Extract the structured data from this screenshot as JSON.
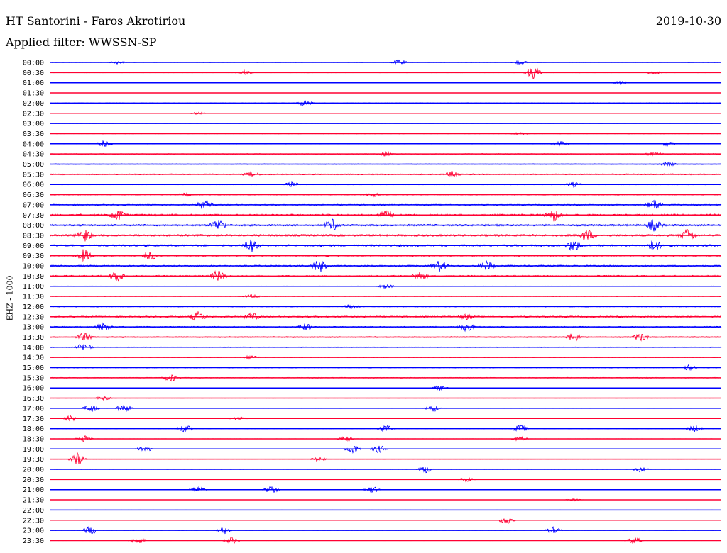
{
  "header": {
    "station": "HT Santorini - Faros Akrotiriou",
    "date": "2019-10-30",
    "filter": "Applied filter: WWSSN-SP",
    "channel": "EHZ - 1000"
  },
  "colors": {
    "even_rows": "#0000ff",
    "odd_rows": "#ff0033",
    "background": "#ffffff"
  },
  "chart_data": {
    "type": "line",
    "title": "HT Santorini - Faros Akrotiriou",
    "ylabel": "EHZ - 1000",
    "rows": [
      {
        "label": "00:00",
        "activity": 0.15,
        "bursts": [
          [
            0.52,
            4
          ],
          [
            0.7,
            3
          ],
          [
            0.1,
            2
          ]
        ]
      },
      {
        "label": "00:30",
        "activity": 0.2,
        "bursts": [
          [
            0.72,
            9
          ],
          [
            0.29,
            3
          ],
          [
            0.9,
            2
          ]
        ]
      },
      {
        "label": "01:00",
        "activity": 0.05,
        "bursts": [
          [
            0.85,
            3
          ]
        ]
      },
      {
        "label": "01:30",
        "activity": 0.05,
        "bursts": []
      },
      {
        "label": "02:00",
        "activity": 0.3,
        "bursts": [
          [
            0.38,
            4
          ]
        ]
      },
      {
        "label": "02:30",
        "activity": 0.08,
        "bursts": [
          [
            0.22,
            2
          ]
        ]
      },
      {
        "label": "03:00",
        "activity": 0.05,
        "bursts": []
      },
      {
        "label": "03:30",
        "activity": 0.2,
        "bursts": [
          [
            0.7,
            2
          ]
        ]
      },
      {
        "label": "04:00",
        "activity": 0.2,
        "bursts": [
          [
            0.08,
            4
          ],
          [
            0.76,
            3
          ],
          [
            0.92,
            3
          ]
        ]
      },
      {
        "label": "04:30",
        "activity": 0.3,
        "bursts": [
          [
            0.5,
            3
          ],
          [
            0.9,
            4
          ]
        ]
      },
      {
        "label": "05:00",
        "activity": 0.3,
        "bursts": [
          [
            0.92,
            3
          ]
        ]
      },
      {
        "label": "05:30",
        "activity": 0.45,
        "bursts": [
          [
            0.6,
            4
          ],
          [
            0.3,
            3
          ]
        ]
      },
      {
        "label": "06:00",
        "activity": 0.3,
        "bursts": [
          [
            0.36,
            3
          ],
          [
            0.78,
            3
          ]
        ]
      },
      {
        "label": "06:30",
        "activity": 0.35,
        "bursts": [
          [
            0.48,
            3
          ],
          [
            0.2,
            3
          ]
        ]
      },
      {
        "label": "07:00",
        "activity": 0.45,
        "bursts": [
          [
            0.23,
            7
          ],
          [
            0.9,
            8
          ]
        ]
      },
      {
        "label": "07:30",
        "activity": 0.75,
        "bursts": [
          [
            0.1,
            8
          ],
          [
            0.75,
            9
          ],
          [
            0.5,
            6
          ]
        ]
      },
      {
        "label": "08:00",
        "activity": 0.7,
        "bursts": [
          [
            0.25,
            8
          ],
          [
            0.42,
            8
          ],
          [
            0.9,
            8
          ]
        ]
      },
      {
        "label": "08:30",
        "activity": 0.75,
        "bursts": [
          [
            0.05,
            9
          ],
          [
            0.8,
            8
          ],
          [
            0.95,
            9
          ]
        ]
      },
      {
        "label": "09:00",
        "activity": 0.7,
        "bursts": [
          [
            0.3,
            8
          ],
          [
            0.78,
            8
          ],
          [
            0.9,
            8
          ]
        ]
      },
      {
        "label": "09:30",
        "activity": 0.5,
        "bursts": [
          [
            0.05,
            9
          ],
          [
            0.15,
            6
          ]
        ]
      },
      {
        "label": "10:00",
        "activity": 0.6,
        "bursts": [
          [
            0.4,
            9
          ],
          [
            0.58,
            8
          ],
          [
            0.65,
            7
          ]
        ]
      },
      {
        "label": "10:30",
        "activity": 0.6,
        "bursts": [
          [
            0.1,
            8
          ],
          [
            0.25,
            8
          ],
          [
            0.55,
            6
          ]
        ]
      },
      {
        "label": "11:00",
        "activity": 0.2,
        "bursts": [
          [
            0.5,
            3
          ]
        ]
      },
      {
        "label": "11:30",
        "activity": 0.2,
        "bursts": [
          [
            0.3,
            3
          ]
        ]
      },
      {
        "label": "12:00",
        "activity": 0.35,
        "bursts": [
          [
            0.45,
            3
          ]
        ]
      },
      {
        "label": "12:30",
        "activity": 0.55,
        "bursts": [
          [
            0.22,
            7
          ],
          [
            0.3,
            6
          ],
          [
            0.62,
            4
          ]
        ]
      },
      {
        "label": "13:00",
        "activity": 0.45,
        "bursts": [
          [
            0.08,
            6
          ],
          [
            0.38,
            5
          ],
          [
            0.62,
            6
          ]
        ]
      },
      {
        "label": "13:30",
        "activity": 0.45,
        "bursts": [
          [
            0.05,
            6
          ],
          [
            0.78,
            6
          ],
          [
            0.88,
            5
          ]
        ]
      },
      {
        "label": "14:00",
        "activity": 0.3,
        "bursts": [
          [
            0.05,
            6
          ]
        ]
      },
      {
        "label": "14:30",
        "activity": 0.2,
        "bursts": [
          [
            0.3,
            3
          ]
        ]
      },
      {
        "label": "15:00",
        "activity": 0.3,
        "bursts": [
          [
            0.95,
            4
          ]
        ]
      },
      {
        "label": "15:30",
        "activity": 0.3,
        "bursts": [
          [
            0.18,
            5
          ]
        ]
      },
      {
        "label": "16:00",
        "activity": 0.12,
        "bursts": [
          [
            0.58,
            4
          ]
        ]
      },
      {
        "label": "16:30",
        "activity": 0.1,
        "bursts": [
          [
            0.08,
            3
          ]
        ]
      },
      {
        "label": "17:00",
        "activity": 0.12,
        "bursts": [
          [
            0.06,
            6
          ],
          [
            0.11,
            6
          ],
          [
            0.57,
            5
          ]
        ]
      },
      {
        "label": "17:30",
        "activity": 0.08,
        "bursts": [
          [
            0.03,
            4
          ],
          [
            0.28,
            3
          ]
        ]
      },
      {
        "label": "18:00",
        "activity": 0.12,
        "bursts": [
          [
            0.2,
            6
          ],
          [
            0.5,
            6
          ],
          [
            0.7,
            6
          ],
          [
            0.96,
            5
          ]
        ]
      },
      {
        "label": "18:30",
        "activity": 0.1,
        "bursts": [
          [
            0.05,
            5
          ],
          [
            0.44,
            4
          ],
          [
            0.7,
            4
          ]
        ]
      },
      {
        "label": "19:00",
        "activity": 0.1,
        "bursts": [
          [
            0.14,
            5
          ],
          [
            0.45,
            6
          ],
          [
            0.49,
            6
          ]
        ]
      },
      {
        "label": "19:30",
        "activity": 0.08,
        "bursts": [
          [
            0.04,
            9
          ],
          [
            0.4,
            4
          ]
        ]
      },
      {
        "label": "20:00",
        "activity": 0.12,
        "bursts": [
          [
            0.56,
            5
          ],
          [
            0.88,
            4
          ]
        ]
      },
      {
        "label": "20:30",
        "activity": 0.08,
        "bursts": [
          [
            0.62,
            4
          ]
        ]
      },
      {
        "label": "21:00",
        "activity": 0.1,
        "bursts": [
          [
            0.22,
            5
          ],
          [
            0.33,
            6
          ],
          [
            0.48,
            5
          ]
        ]
      },
      {
        "label": "21:30",
        "activity": 0.05,
        "bursts": [
          [
            0.78,
            2
          ]
        ]
      },
      {
        "label": "22:00",
        "activity": 0.03,
        "bursts": []
      },
      {
        "label": "22:30",
        "activity": 0.08,
        "bursts": [
          [
            0.68,
            6
          ]
        ]
      },
      {
        "label": "23:00",
        "activity": 0.1,
        "bursts": [
          [
            0.06,
            6
          ],
          [
            0.26,
            5
          ],
          [
            0.75,
            5
          ]
        ]
      },
      {
        "label": "23:30",
        "activity": 0.1,
        "bursts": [
          [
            0.13,
            5
          ],
          [
            0.27,
            5
          ],
          [
            0.87,
            5
          ]
        ]
      }
    ]
  }
}
